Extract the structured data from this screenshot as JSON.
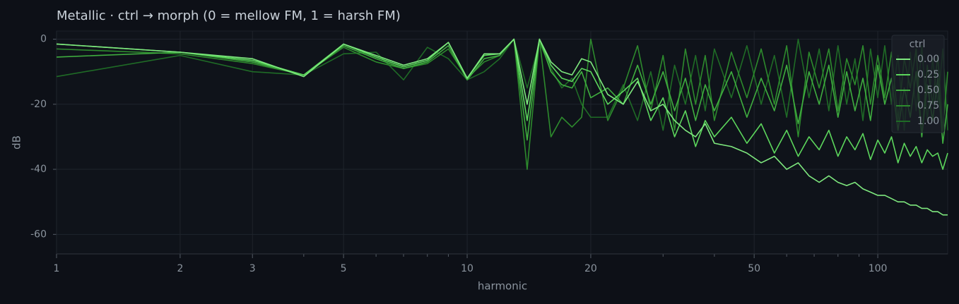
{
  "chart_data": {
    "type": "line",
    "title": "Metallic  ·  ctrl → morph (0 = mellow FM, 1 = harsh FM)",
    "xlabel": "harmonic",
    "ylabel": "dB",
    "xscale": "log",
    "grid": true,
    "xlim": [
      1,
      148
    ],
    "ylim": [
      -66,
      2.5
    ],
    "xticks": [
      1,
      2,
      3,
      5,
      10,
      20,
      50,
      100
    ],
    "xminorticks": [
      4,
      6,
      7,
      8,
      9,
      30,
      40,
      60,
      70,
      80,
      90
    ],
    "yticks": [
      -60,
      -40,
      -20,
      0
    ],
    "legend_title": "ctrl",
    "legend_loc": "upper right",
    "x": [
      1,
      2,
      3,
      4,
      5,
      6,
      7,
      8,
      9,
      10,
      11,
      12,
      13,
      14,
      15,
      16,
      17,
      18,
      19,
      20,
      22,
      24,
      26,
      28,
      30,
      32,
      34,
      36,
      38,
      40,
      44,
      48,
      52,
      56,
      60,
      64,
      68,
      72,
      76,
      80,
      84,
      88,
      92,
      96,
      100,
      104,
      108,
      112,
      116,
      120,
      124,
      128,
      132,
      136,
      140,
      144,
      148
    ],
    "series": [
      {
        "name": "0.00",
        "color": "#7ee87e",
        "values": [
          -1.5,
          -4,
          -6,
          -11.5,
          -1.5,
          -5,
          -8,
          -6,
          -1,
          -12,
          -4.5,
          -4.5,
          0,
          -20,
          0,
          -7,
          -10,
          -11,
          -6,
          -7,
          -17,
          -20,
          -13,
          -22,
          -20,
          -25,
          -28,
          -30,
          -26,
          -32,
          -33,
          -35,
          -38,
          -36,
          -40,
          -38,
          -42,
          -44,
          -42,
          -44,
          -45,
          -44,
          -46,
          -47,
          -48,
          -48,
          -49,
          -50,
          -50,
          -51,
          -51,
          -52,
          -52,
          -53,
          -53,
          -54,
          -54
        ]
      },
      {
        "name": "0.25",
        "color": "#5cd65c",
        "values": [
          -1.5,
          -4,
          -6.5,
          -11,
          -1.5,
          -5.5,
          -8.5,
          -6.5,
          -1,
          -12,
          -5,
          -4.5,
          0,
          -25,
          0,
          -8,
          -12,
          -13,
          -9,
          -10,
          -20,
          -16,
          -12,
          -25,
          -18,
          -30,
          -22,
          -33,
          -25,
          -30,
          -24,
          -32,
          -26,
          -35,
          -28,
          -36,
          -30,
          -34,
          -28,
          -36,
          -30,
          -34,
          -29,
          -37,
          -31,
          -35,
          -30,
          -38,
          -32,
          -36,
          -33,
          -38,
          -34,
          -36,
          -35,
          -40,
          -35
        ]
      },
      {
        "name": "0.50",
        "color": "#3fae3f",
        "values": [
          -5.5,
          -4,
          -7,
          -11,
          -2,
          -6,
          -9,
          -7,
          -2,
          -12.5,
          -6,
          -5,
          0,
          -31,
          0,
          -10,
          -14,
          -15,
          -10,
          -18,
          -15,
          -20,
          -8,
          -20,
          -10,
          -22,
          -12,
          -25,
          -14,
          -22,
          -10,
          -24,
          -12,
          -22,
          -8,
          -26,
          -10,
          -20,
          -8,
          -24,
          -10,
          -22,
          -12,
          -25,
          -8,
          -20,
          -12,
          -28,
          -15,
          -24,
          -10,
          -30,
          -14,
          -25,
          -12,
          -32,
          -20
        ]
      },
      {
        "name": "0.75",
        "color": "#2d8a2d",
        "values": [
          -3,
          -4.5,
          -7.5,
          -11,
          -2.5,
          -7,
          -9,
          -7.5,
          -3,
          -12,
          -7,
          -5,
          0,
          -40,
          0,
          -30,
          -24,
          -27,
          -24,
          0,
          -25,
          -15,
          -2,
          -22,
          -5,
          -28,
          -3,
          -20,
          -5,
          -25,
          -4,
          -18,
          -3,
          -20,
          -2,
          -30,
          -4,
          -15,
          -3,
          -22,
          -6,
          -14,
          -2,
          -20,
          -5,
          -18,
          -4,
          -25,
          -6,
          -15,
          -3,
          -30,
          -8,
          -20,
          -5,
          -28,
          -10
        ]
      },
      {
        "name": "1.00",
        "color": "#1f6b26",
        "values": [
          -11.5,
          -5,
          -10,
          -11,
          -4.5,
          -4,
          -12.5,
          -2.5,
          -6,
          -12.5,
          -10,
          -6,
          0,
          -15,
          -1,
          -9,
          -15,
          -12,
          -20,
          -24,
          -24,
          -14,
          -25,
          -10,
          -28,
          -8,
          -20,
          -5,
          -22,
          -3,
          -18,
          -2,
          -20,
          -5,
          -24,
          0,
          -18,
          -3,
          -22,
          -2,
          -20,
          -6,
          -25,
          -3,
          -18,
          -2,
          -20,
          -5,
          -28,
          -4,
          -22,
          -2,
          -25,
          -6,
          -20,
          -3,
          -28
        ]
      }
    ]
  }
}
